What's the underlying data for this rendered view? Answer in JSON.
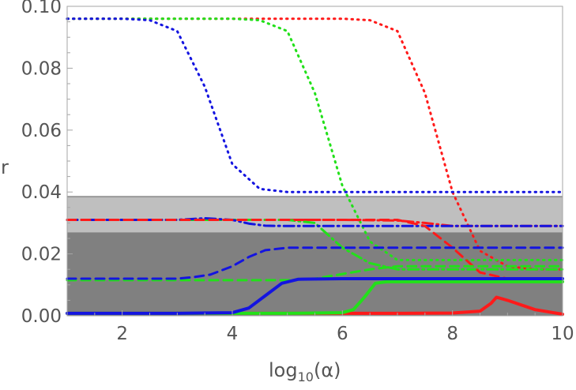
{
  "chart_data": {
    "type": "line",
    "title": "",
    "xlabel": {
      "base": "log",
      "subscript": "10",
      "arg": "(α)"
    },
    "ylabel": "r",
    "xlim": [
      1,
      10
    ],
    "ylim": [
      0,
      0.1
    ],
    "x_ticks": [
      2,
      4,
      6,
      8,
      10
    ],
    "x_tick_labels": [
      "2",
      "4",
      "6",
      "8",
      "10"
    ],
    "y_ticks": [
      0,
      0.02,
      0.04,
      0.06,
      0.08,
      0.1
    ],
    "y_tick_labels": [
      "0.00",
      "0.02",
      "0.04",
      "0.06",
      "0.08",
      "0.10"
    ],
    "grid": false,
    "shaded_bands": [
      {
        "y0": 0.0,
        "y1": 0.027,
        "color": "#808080"
      },
      {
        "y0": 0.027,
        "y1": 0.0385,
        "color": "#bfbfbf"
      }
    ],
    "reference_line": {
      "y": 0.0385,
      "color": "#999999"
    },
    "colors": {
      "red": "#ff1a1a",
      "green": "#22e01a",
      "blue": "#1414e0"
    },
    "series": [
      {
        "color": "red",
        "style": "dotted",
        "x": [
          1,
          2,
          3,
          4,
          5,
          6,
          6.5,
          7,
          7.5,
          8,
          8.5,
          9,
          9.5,
          10
        ],
        "y": [
          0.096,
          0.096,
          0.096,
          0.096,
          0.096,
          0.096,
          0.0955,
          0.092,
          0.072,
          0.04,
          0.021,
          0.016,
          0.015,
          0.015
        ]
      },
      {
        "color": "green",
        "style": "dotted",
        "x": [
          1,
          2,
          3,
          4,
          4.5,
          5,
          5.5,
          6,
          6.5,
          7,
          8,
          9,
          10
        ],
        "y": [
          0.096,
          0.096,
          0.096,
          0.096,
          0.0955,
          0.092,
          0.072,
          0.042,
          0.024,
          0.018,
          0.018,
          0.018,
          0.018
        ]
      },
      {
        "color": "blue",
        "style": "dotted",
        "x": [
          1,
          2,
          2.5,
          3,
          3.5,
          4,
          4.5,
          5,
          6,
          7,
          8,
          9,
          10
        ],
        "y": [
          0.096,
          0.096,
          0.0955,
          0.092,
          0.074,
          0.049,
          0.041,
          0.04,
          0.04,
          0.04,
          0.04,
          0.04,
          0.04
        ]
      },
      {
        "color": "red",
        "style": "dashdot",
        "x": [
          1,
          2,
          3,
          4,
          5,
          6,
          7,
          7.5,
          8,
          9,
          10
        ],
        "y": [
          0.031,
          0.031,
          0.031,
          0.031,
          0.031,
          0.031,
          0.0308,
          0.03,
          0.029,
          0.029,
          0.029
        ]
      },
      {
        "color": "green",
        "style": "dashdot",
        "x": [
          1,
          2,
          3,
          4,
          5,
          5.5,
          6,
          6.5,
          7,
          8,
          9,
          10
        ],
        "y": [
          0.031,
          0.031,
          0.031,
          0.031,
          0.031,
          0.03,
          0.022,
          0.017,
          0.015,
          0.015,
          0.015,
          0.015
        ]
      },
      {
        "color": "blue",
        "style": "dashdot",
        "x": [
          1,
          2,
          3,
          3.5,
          4,
          4.3,
          4.6,
          5,
          6,
          7,
          8,
          9,
          10
        ],
        "y": [
          0.031,
          0.031,
          0.031,
          0.0315,
          0.031,
          0.0298,
          0.0291,
          0.029,
          0.029,
          0.029,
          0.029,
          0.029,
          0.029
        ]
      },
      {
        "color": "red",
        "style": "dashed",
        "x": [
          1,
          7,
          7.5,
          8,
          8.5,
          9,
          10
        ],
        "y": [
          0.031,
          0.031,
          0.029,
          0.022,
          0.014,
          0.012,
          0.012
        ]
      },
      {
        "color": "green",
        "style": "dashed",
        "x": [
          1,
          2,
          3,
          4,
          5,
          5.5,
          6,
          6.5,
          7,
          8,
          9,
          10
        ],
        "y": [
          0.0115,
          0.0115,
          0.0115,
          0.0115,
          0.0115,
          0.012,
          0.0135,
          0.015,
          0.016,
          0.016,
          0.016,
          0.016
        ]
      },
      {
        "color": "blue",
        "style": "dashed",
        "x": [
          1,
          2,
          3,
          3.3,
          3.6,
          4,
          4.3,
          4.6,
          5,
          6,
          7,
          8,
          9,
          10
        ],
        "y": [
          0.012,
          0.012,
          0.012,
          0.0125,
          0.0133,
          0.016,
          0.019,
          0.0212,
          0.022,
          0.022,
          0.022,
          0.022,
          0.022,
          0.022
        ]
      },
      {
        "color": "red",
        "style": "solid",
        "x": [
          1,
          2,
          3,
          4,
          5,
          6,
          7,
          8,
          8.5,
          8.7,
          8.8,
          9,
          9.5,
          10
        ],
        "y": [
          0.0008,
          0.0008,
          0.0008,
          0.0008,
          0.0008,
          0.0008,
          0.0008,
          0.0009,
          0.0015,
          0.004,
          0.006,
          0.005,
          0.002,
          0.0005
        ]
      },
      {
        "color": "green",
        "style": "solid",
        "x": [
          1,
          2,
          3,
          4,
          5,
          6,
          6.2,
          6.4,
          6.6,
          6.8,
          7,
          8,
          9,
          10
        ],
        "y": [
          0.0008,
          0.0008,
          0.0008,
          0.0008,
          0.0008,
          0.001,
          0.002,
          0.006,
          0.0105,
          0.011,
          0.011,
          0.011,
          0.011,
          0.011
        ]
      },
      {
        "color": "blue",
        "style": "solid",
        "x": [
          1,
          2,
          3,
          4,
          4.3,
          4.6,
          4.9,
          5.2,
          6,
          7,
          8,
          9,
          10
        ],
        "y": [
          0.0008,
          0.0008,
          0.0008,
          0.001,
          0.0025,
          0.0065,
          0.0105,
          0.0118,
          0.012,
          0.012,
          0.012,
          0.012,
          0.012
        ]
      }
    ]
  }
}
